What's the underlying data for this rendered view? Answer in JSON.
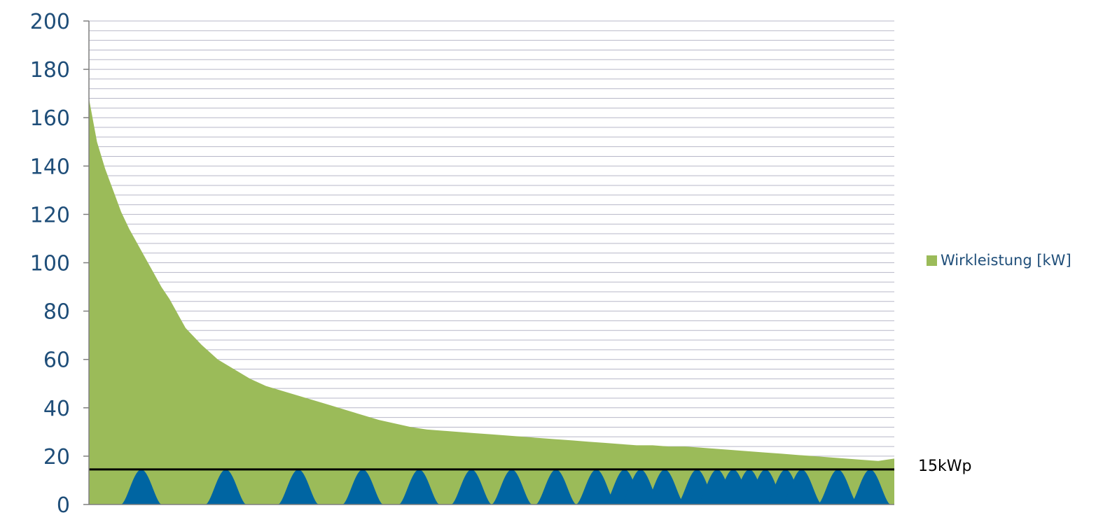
{
  "chart_data": {
    "type": "area",
    "x": [
      0,
      1,
      2,
      3,
      4,
      5,
      6,
      7,
      8,
      9,
      10,
      12,
      14,
      16,
      18,
      20,
      22,
      24,
      26,
      28,
      30,
      32,
      34,
      36,
      38,
      40,
      42,
      44,
      46,
      48,
      50,
      52,
      54,
      56,
      58,
      60,
      62,
      64,
      66,
      68,
      70,
      72,
      74,
      76,
      78,
      80,
      82,
      84,
      86,
      88,
      90,
      92,
      94,
      96,
      98,
      100
    ],
    "series": [
      {
        "name": "Wirkleistung [kW]",
        "values": [
          168,
          150,
          139,
          130,
          121,
          114,
          108,
          102,
          96,
          90,
          85,
          73,
          66,
          60,
          56,
          52,
          49,
          47,
          45,
          43,
          41,
          39,
          37,
          35,
          33.5,
          32,
          31,
          30.5,
          30,
          29.5,
          29,
          28.5,
          28,
          27.5,
          27,
          26.5,
          26,
          25.5,
          25,
          24.5,
          24.5,
          24,
          24,
          23.5,
          23,
          22.5,
          22,
          21.5,
          21,
          20.5,
          20,
          19.5,
          19,
          18.5,
          18,
          19
        ]
      }
    ],
    "ylim": [
      0,
      200
    ],
    "xlim": [
      0,
      100
    ],
    "yticks": [
      "0",
      "20",
      "40",
      "60",
      "80",
      "100",
      "120",
      "140",
      "160",
      "180",
      "200"
    ],
    "ytick_values": [
      0,
      20,
      40,
      60,
      80,
      100,
      120,
      140,
      160,
      180,
      200
    ],
    "grid_minor_step": 4,
    "legend_position": "right",
    "reference_line": {
      "value": 14.5,
      "label": "15kWp",
      "color": "#000000"
    },
    "pv_profiles": {
      "peak": 14.5,
      "color": "#0065a2",
      "centers": [
        6.5,
        17,
        26,
        34,
        41,
        47.5,
        52.5,
        58,
        63,
        66.5,
        68.5,
        71.5,
        75.5,
        78,
        80,
        82,
        84,
        86.5,
        88.5,
        93,
        97
      ],
      "half_width": 2.5
    },
    "colors": {
      "area": "#9bbb59",
      "grid": "#b7b7c8",
      "axis_text": "#1f4e79",
      "axis_line": "#7f7f7f"
    }
  }
}
